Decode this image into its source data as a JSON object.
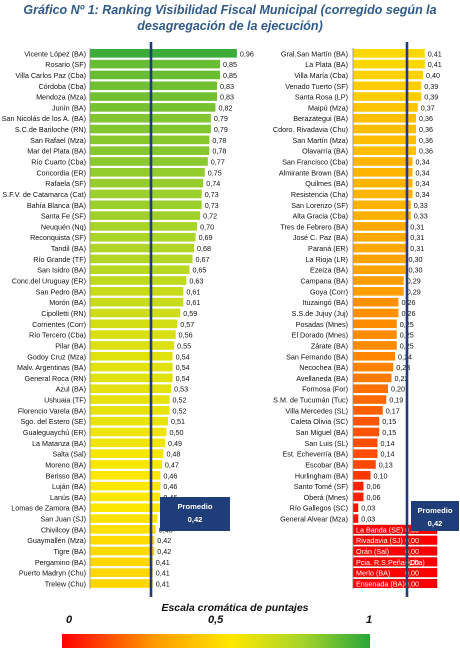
{
  "title": "Gráfico Nº 1: Ranking Visibilidad Fiscal Municipal (corregido según la desagregación de la ejecución)",
  "chart_data": [
    {
      "type": "bar",
      "orientation": "horizontal",
      "title": "Gráfico Nº 1: Ranking Visibilidad Fiscal Municipal (corregido según la desagregación de la ejecución)",
      "xlim": [
        0,
        1
      ],
      "categories": [
        "Vicente López (BA)",
        "Rosario (SF)",
        "Villa Carlos Paz (Cba)",
        "Córdoba (Cba)",
        "Mendoza (Mza)",
        "Junín (BA)",
        "San Nicolás de los A. (BA)",
        "S.C.de Bariloche (RN)",
        "San Rafael (Mza)",
        "Mar del Plata (BA)",
        "Río Cuarto (Cba)",
        "Concordia (ER)",
        "Rafaela (SF)",
        "S.F.V. de Catamarca (Cat)",
        "Bahía Blanca (BA)",
        "Santa Fe (SF)",
        "Neuquén (Nq)",
        "Reconquista (SF)",
        "Tandil (BA)",
        "Río Grande (TF)",
        "San Isidro (BA)",
        "Conc.del Uruguay (ER)",
        "San Pedro (BA)",
        "Morón (BA)",
        "Cipolletti (RN)",
        "Corrientes (Corr)",
        "Río Tercero (Cba)",
        "Pilar (BA)",
        "Godoy Cruz (Mza)",
        "Malv. Argentinas (BA)",
        "General Roca (RN)",
        "Azul (BA)",
        "Ushuaia (TF)",
        "Florencio Varela (BA)",
        "Sgo. del Estero (SE)",
        "Gualeguaychú (ER)",
        "La Matanza (BA)",
        "Salta (Sal)",
        "Moreno (BA)",
        "Berisso (BA)",
        "Luján (BA)",
        "Lanús (BA)",
        "Lomas de Zamora (BA)",
        "San Juan (SJ)",
        "Chivilcoy (BA)",
        "Guaymallén (Mza)",
        "Tigre (BA)",
        "Pergamino (BA)",
        "Puerto Madryn (Chu)",
        "Trelew (Chu)"
      ],
      "values": [
        0.96,
        0.85,
        0.85,
        0.83,
        0.83,
        0.82,
        0.79,
        0.79,
        0.78,
        0.78,
        0.77,
        0.75,
        0.74,
        0.73,
        0.73,
        0.72,
        0.7,
        0.69,
        0.68,
        0.67,
        0.65,
        0.63,
        0.61,
        0.61,
        0.59,
        0.57,
        0.56,
        0.55,
        0.54,
        0.54,
        0.54,
        0.53,
        0.52,
        0.52,
        0.51,
        0.5,
        0.49,
        0.48,
        0.47,
        0.46,
        0.46,
        0.46,
        0.46,
        0.44,
        0.43,
        0.42,
        0.42,
        0.41,
        0.41,
        0.41
      ],
      "value_labels": [
        "0,96",
        "0,85",
        "0,85",
        "0,83",
        "0,83",
        "0,82",
        "0,79",
        "0,79",
        "0,78",
        "0,78",
        "0,77",
        "0,75",
        "0,74",
        "0,73",
        "0,73",
        "0,72",
        "0,70",
        "0,69",
        "0,68",
        "0,67",
        "0,65",
        "0,63",
        "0,61",
        "0,61",
        "0,59",
        "0,57",
        "0,56",
        "0,55",
        "0,54",
        "0,54",
        "0,54",
        "0,53",
        "0,52",
        "0,52",
        "0,51",
        "0,50",
        "0,49",
        "0,48",
        "0,47",
        "0,46",
        "0,46",
        "0,46",
        "0,46",
        "0,44",
        "0,43",
        "0,42",
        "0,42",
        "0,41",
        "0,41",
        "0,41"
      ],
      "average": 0.42,
      "average_label": "Promedio",
      "average_value_label": "0,42"
    },
    {
      "type": "bar",
      "orientation": "horizontal",
      "xlim": [
        0,
        1
      ],
      "categories": [
        "Gral.San Martín (BA)",
        "La Plata (BA)",
        "Villa María (Cba)",
        "Venado Tuerto (SF)",
        "Santa Rosa (LP)",
        "Maipú (Mza)",
        "Berazategui (BA)",
        "Cdoro. Rivadavia (Chu)",
        "San Martín (Mza)",
        "Olavarría (BA)",
        "San Francisco (Cba)",
        "Almirante Brown (BA)",
        "Quilmes (BA)",
        "Resistencia (Cha)",
        "San Lorenzo (SF)",
        "Alta Gracia (Cba)",
        "Tres de Febrero (BA)",
        "José C. Paz (BA)",
        "Paraná (ER)",
        "La Rioja (LR)",
        "Ezeiza (BA)",
        "Campana (BA)",
        "Goya (Corr)",
        "Ituzaingó (BA)",
        "S.S.de Jujuy (Juj)",
        "Posadas (Mnes)",
        "El Dorado (Mnes)",
        "Zárate (BA)",
        "San Fernando (BA)",
        "Necochea (BA)",
        "Avellaneda (BA)",
        "Formosa (For)",
        "S.M. de Tucumán (Tuc)",
        "Villa Mercedes (SL)",
        "Caleta Olivia (SC)",
        "San Miguel (BA)",
        "San Luis (SL)",
        "Est. Echeverría (BA)",
        "Escobar (BA)",
        "Hurlingham (BA)",
        "Santo Tomé (SF)",
        "Oberá (Mnes)",
        "Río Gallegos (SC)",
        "General Alvear (Mza)",
        "La Banda (SE)",
        "Rivadavia (SJ)",
        "Orán (Sal)",
        "Pcia. R.S.Peña (Cha)",
        "Merlo (BA)",
        "Ensenada (BA)"
      ],
      "values": [
        0.41,
        0.41,
        0.4,
        0.39,
        0.39,
        0.37,
        0.36,
        0.36,
        0.36,
        0.36,
        0.34,
        0.34,
        0.34,
        0.34,
        0.33,
        0.33,
        0.31,
        0.31,
        0.31,
        0.3,
        0.3,
        0.29,
        0.29,
        0.26,
        0.26,
        0.25,
        0.25,
        0.25,
        0.24,
        0.23,
        0.22,
        0.2,
        0.19,
        0.17,
        0.15,
        0.15,
        0.14,
        0.14,
        0.13,
        0.1,
        0.06,
        0.06,
        0.03,
        0.03,
        0.0,
        0.0,
        0.0,
        0.0,
        0.0,
        0.0
      ],
      "value_labels": [
        "0,41",
        "0,41",
        "0,40",
        "0,39",
        "0,39",
        "0,37",
        "0,36",
        "0,36",
        "0,36",
        "0,36",
        "0,34",
        "0,34",
        "0,34",
        "0,34",
        "0,33",
        "0,33",
        "0,31",
        "0,31",
        "0,31",
        "0,30",
        "0,30",
        "0,29",
        "0,29",
        "0,26",
        "0,26",
        "0,25",
        "0,25",
        "0,25",
        "0,24",
        "0,23",
        "0,22",
        "0,20",
        "0,19",
        "0,17",
        "0,15",
        "0,15",
        "0,14",
        "0,14",
        "0,13",
        "0,10",
        "0,06",
        "0,06",
        "0,03",
        "0,03",
        "0,00",
        "0,00",
        "0,00",
        "0,00",
        "0,00",
        "0,00"
      ],
      "average": 0.42,
      "average_label": "Promedio",
      "average_value_label": "0,42"
    }
  ],
  "color_scale": {
    "title": "Escala cromática de puntajes",
    "ticks": [
      "0",
      "0,5",
      "1"
    ],
    "colors": [
      "#ff0000",
      "#ff8c00",
      "#ffe800",
      "#9ed42a",
      "#2aa63a"
    ]
  }
}
